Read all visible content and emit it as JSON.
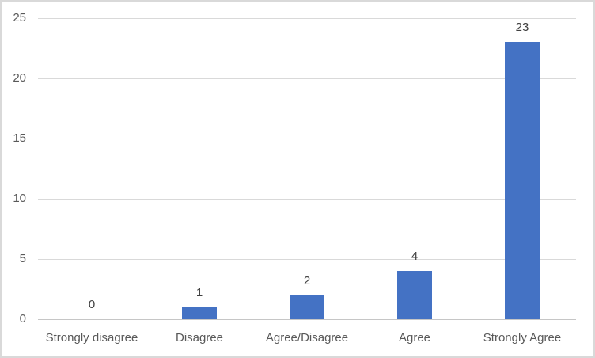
{
  "chart_data": {
    "type": "bar",
    "categories": [
      "Strongly disagree",
      "Disagree",
      "Agree/Disagree",
      "Agree",
      "Strongly Agree"
    ],
    "values": [
      0,
      1,
      2,
      4,
      23
    ],
    "data_labels": [
      "0",
      "1",
      "2",
      "4",
      "23"
    ],
    "ylim": [
      0,
      25
    ],
    "yticks": [
      0,
      5,
      10,
      15,
      20,
      25
    ],
    "grid": true,
    "legend": false,
    "colors": {
      "bar": "#4472C4",
      "gridline": "#D9D9D9",
      "axis_line": "#C6C6C6",
      "tick_label": "#595959",
      "category_label": "#595959",
      "data_label": "#404040",
      "frame_border": "#D9D9D9",
      "background": "#FFFFFF"
    }
  }
}
